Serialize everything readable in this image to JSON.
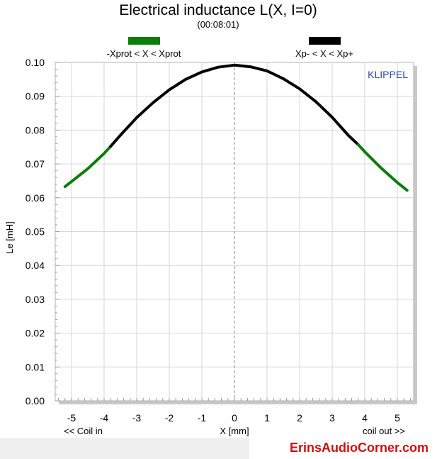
{
  "chart_data": {
    "type": "line",
    "title": "Electrical inductance L(X, I=0)",
    "subtitle": "(00:08:01)",
    "xlabel": "X [mm]",
    "ylabel": "Le [mH]",
    "x_left_note": "<< Coil in",
    "x_right_note": "coil out >>",
    "brand": "KLIPPEL",
    "xlim": [
      -5.5,
      5.5
    ],
    "ylim": [
      0,
      0.1
    ],
    "x_ticks": [
      -5,
      -4,
      -3,
      -2,
      -1,
      0,
      1,
      2,
      3,
      4,
      5
    ],
    "y_ticks": [
      "0.00",
      "0.01",
      "0.02",
      "0.03",
      "0.04",
      "0.05",
      "0.06",
      "0.07",
      "0.08",
      "0.09",
      "0.10"
    ],
    "grid": true,
    "legend_placement": "top",
    "series": [
      {
        "name": "-Xprot < X < Xprot",
        "color": "#0a7d0a",
        "x": [
          -5.2,
          -5.0,
          -4.5,
          -4.0,
          -3.8
        ],
        "values": [
          0.0633,
          0.0648,
          0.0686,
          0.0731,
          0.0752
        ]
      },
      {
        "name": "Xp- < X < Xp+",
        "color": "#000000",
        "x": [
          -3.8,
          -3.5,
          -3.0,
          -2.5,
          -2.0,
          -1.5,
          -1.0,
          -0.5,
          0.0,
          0.5,
          1.0,
          1.5,
          2.0,
          2.5,
          3.0,
          3.5,
          3.8
        ],
        "values": [
          0.0752,
          0.0785,
          0.0837,
          0.0881,
          0.0919,
          0.095,
          0.0972,
          0.0986,
          0.0992,
          0.0987,
          0.0975,
          0.0952,
          0.0922,
          0.0884,
          0.0838,
          0.0784,
          0.0757
        ]
      },
      {
        "name": "-Xprot < X < Xprot",
        "color": "#0a7d0a",
        "x": [
          3.8,
          4.0,
          4.5,
          5.0,
          5.3
        ],
        "values": [
          0.0757,
          0.0736,
          0.0688,
          0.0645,
          0.0622
        ]
      }
    ]
  },
  "footer": {
    "watermark": "ErinsAudioCorner.com"
  }
}
